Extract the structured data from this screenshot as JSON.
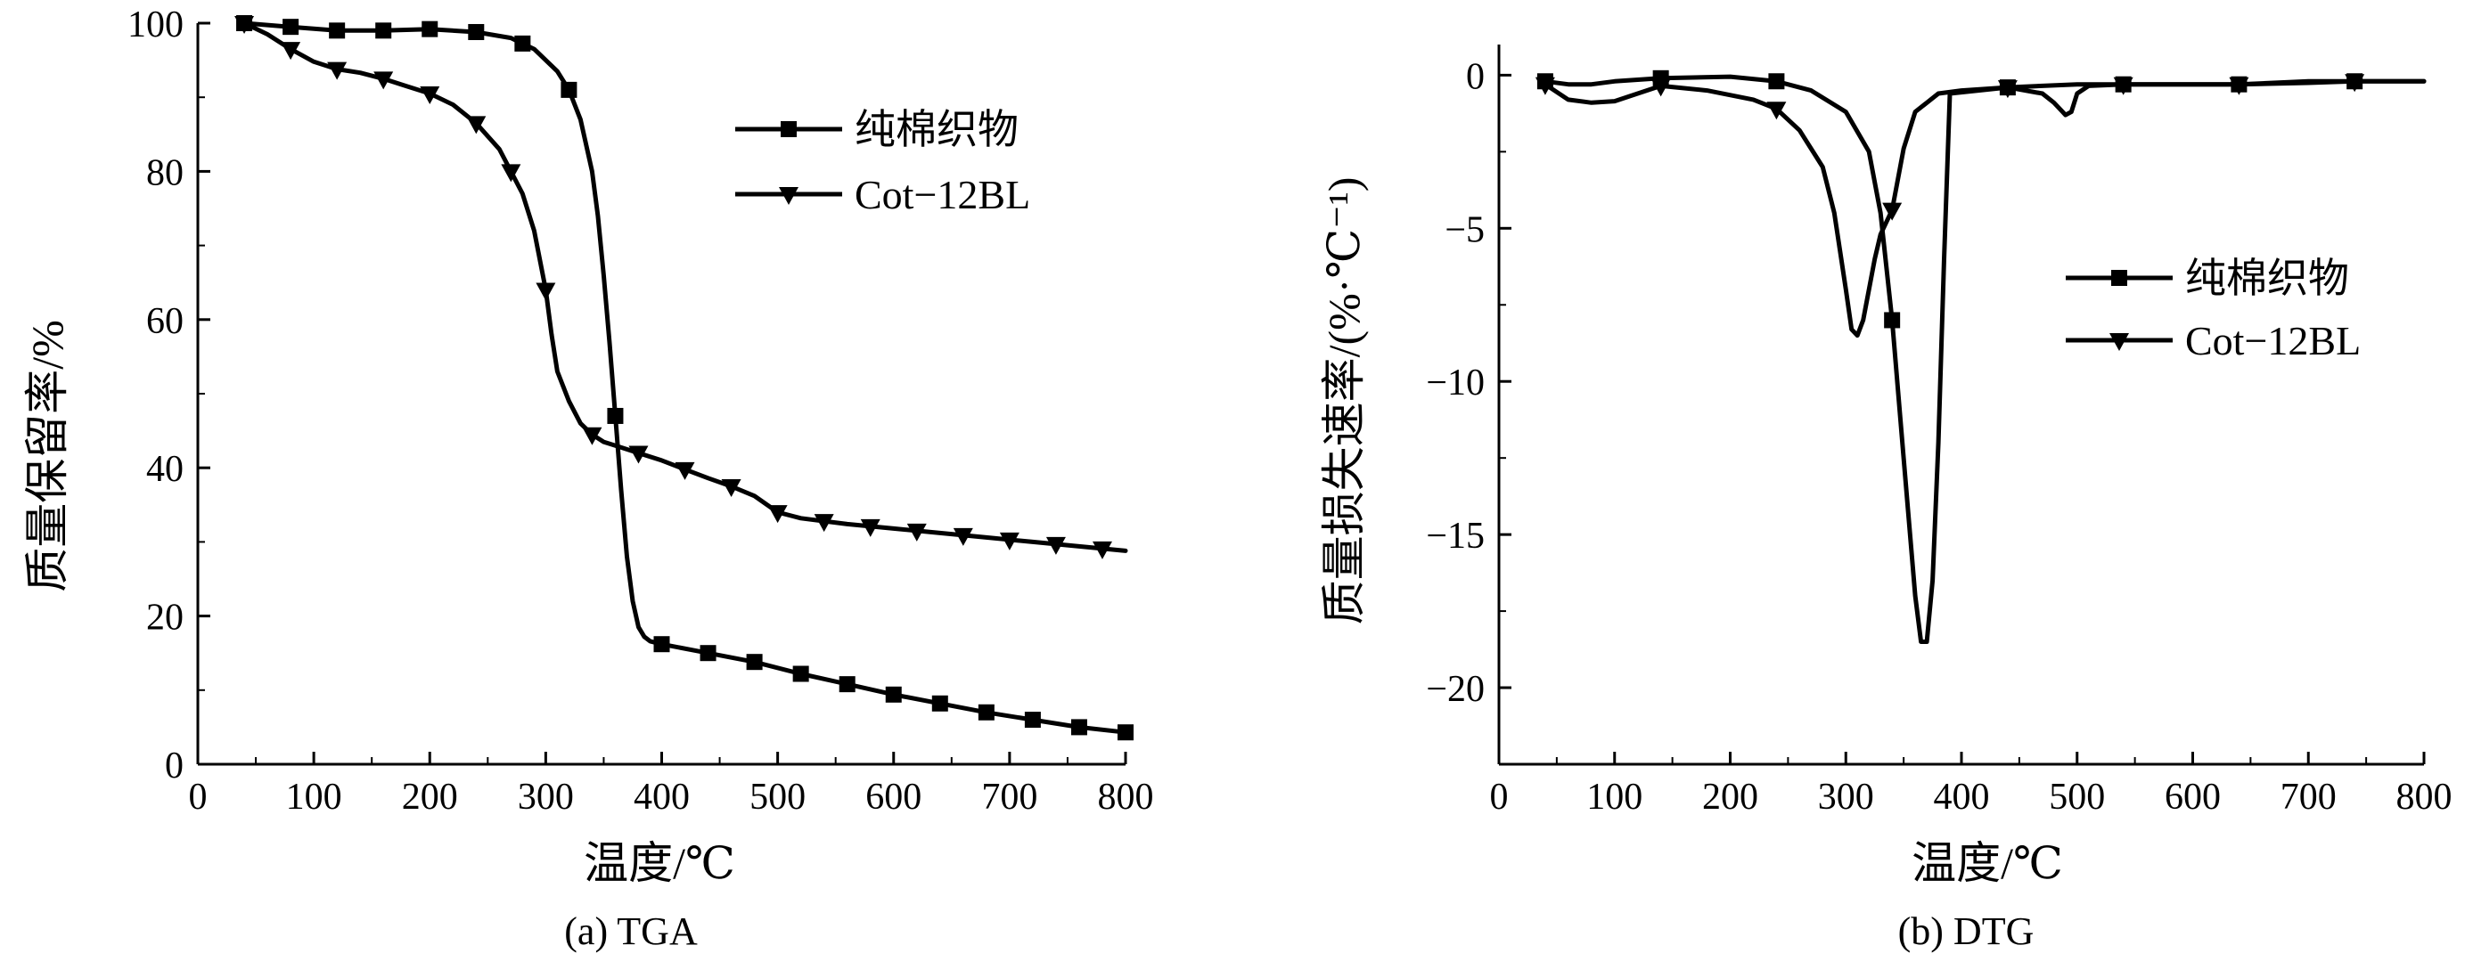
{
  "chart_data": [
    {
      "type": "line",
      "title": "(a) TGA",
      "xlabel": "温度/℃",
      "ylabel": "质量保留率/%",
      "xlim": [
        0,
        800
      ],
      "ylim": [
        0,
        100
      ],
      "xticks": [
        0,
        100,
        200,
        300,
        400,
        500,
        600,
        700,
        800
      ],
      "yticks": [
        0,
        20,
        40,
        60,
        80,
        100
      ],
      "ytick_labels": [
        "0",
        "20",
        "40",
        "60",
        "80",
        "100"
      ],
      "legend_position": "top-right",
      "grid": false,
      "series": [
        {
          "name": "纯棉织物",
          "marker": "square",
          "x": [
            40,
            80,
            120,
            160,
            200,
            240,
            270,
            290,
            310,
            320,
            330,
            340,
            345,
            350,
            355,
            360,
            365,
            370,
            375,
            380,
            385,
            390,
            400,
            440,
            480,
            520,
            560,
            600,
            640,
            680,
            720,
            760,
            800
          ],
          "y": [
            100,
            99.5,
            99,
            99,
            99.2,
            98.8,
            98,
            96.5,
            93.5,
            91,
            87,
            80,
            74,
            66,
            57,
            47,
            37,
            28,
            22,
            18.5,
            17.2,
            16.6,
            16.2,
            15,
            13.8,
            12.2,
            10.8,
            9.4,
            8.2,
            7,
            6,
            5,
            4.3
          ],
          "marker_x": [
            40,
            80,
            120,
            160,
            200,
            240,
            280,
            320,
            360,
            400,
            440,
            480,
            520,
            560,
            600,
            640,
            680,
            720,
            760,
            800
          ]
        },
        {
          "name": "Cot−12BL",
          "marker": "triangle-down",
          "x": [
            40,
            60,
            80,
            100,
            120,
            140,
            160,
            180,
            200,
            220,
            240,
            260,
            280,
            290,
            300,
            305,
            310,
            320,
            330,
            340,
            350,
            360,
            380,
            400,
            420,
            440,
            460,
            480,
            500,
            520,
            560,
            600,
            640,
            680,
            720,
            760,
            800
          ],
          "y": [
            100,
            98.5,
            96.5,
            94.8,
            93.8,
            93.3,
            92.5,
            91.5,
            90.5,
            89,
            86.5,
            83,
            77,
            72,
            64,
            58,
            53,
            49,
            46,
            44.5,
            43.5,
            43,
            42,
            41,
            39.8,
            38.6,
            37.5,
            36.2,
            34,
            33.2,
            32.4,
            31.8,
            31.2,
            30.6,
            30,
            29.4,
            28.8
          ],
          "marker_x": [
            40,
            80,
            120,
            160,
            200,
            240,
            270,
            300,
            340,
            380,
            420,
            460,
            500,
            540,
            580,
            620,
            660,
            700,
            740,
            780
          ]
        }
      ]
    },
    {
      "type": "line",
      "title": "(b) DTG",
      "xlabel": "温度/℃",
      "ylabel": "质量损失速率/(%·℃⁻¹)",
      "xlim": [
        0,
        800
      ],
      "ylim": [
        -22.5,
        1
      ],
      "xticks": [
        0,
        100,
        200,
        300,
        400,
        500,
        600,
        700,
        800
      ],
      "yticks": [
        0,
        -5,
        -10,
        -15,
        -20
      ],
      "ytick_labels": [
        "0",
        "−5",
        "−10",
        "−15",
        "−20"
      ],
      "legend_position": "right",
      "grid": false,
      "series": [
        {
          "name": "纯棉织物",
          "marker": "square",
          "x": [
            40,
            60,
            80,
            100,
            140,
            200,
            240,
            270,
            300,
            320,
            330,
            340,
            350,
            360,
            365,
            370,
            375,
            380,
            385,
            390,
            440,
            500,
            540,
            600,
            640,
            700,
            740,
            800
          ],
          "y": [
            -0.2,
            -0.3,
            -0.3,
            -0.2,
            -0.1,
            -0.05,
            -0.2,
            -0.5,
            -1.2,
            -2.5,
            -4.5,
            -8,
            -12.5,
            -17,
            -18.5,
            -18.5,
            -16.5,
            -12,
            -6,
            -0.6,
            -0.4,
            -0.3,
            -0.3,
            -0.3,
            -0.3,
            -0.2,
            -0.2,
            -0.2
          ],
          "marker_x": [
            40,
            140,
            240,
            340,
            440,
            540,
            640,
            740
          ]
        },
        {
          "name": "Cot−12BL",
          "marker": "triangle-down",
          "x": [
            40,
            60,
            80,
            100,
            120,
            140,
            180,
            220,
            240,
            260,
            280,
            290,
            300,
            305,
            310,
            315,
            320,
            325,
            330,
            340,
            350,
            360,
            380,
            400,
            440,
            470,
            480,
            490,
            495,
            500,
            510,
            540,
            600,
            640,
            700,
            740,
            800
          ],
          "y": [
            -0.3,
            -0.8,
            -0.9,
            -0.85,
            -0.6,
            -0.35,
            -0.5,
            -0.8,
            -1.1,
            -1.8,
            -3,
            -4.5,
            -7,
            -8.3,
            -8.5,
            -8,
            -7,
            -6,
            -5.2,
            -4.4,
            -2.4,
            -1.2,
            -0.6,
            -0.5,
            -0.4,
            -0.6,
            -0.9,
            -1.3,
            -1.2,
            -0.6,
            -0.35,
            -0.3,
            -0.3,
            -0.3,
            -0.25,
            -0.2,
            -0.2
          ],
          "marker_x": [
            40,
            140,
            240,
            340,
            440,
            540,
            640,
            740
          ]
        }
      ]
    }
  ]
}
